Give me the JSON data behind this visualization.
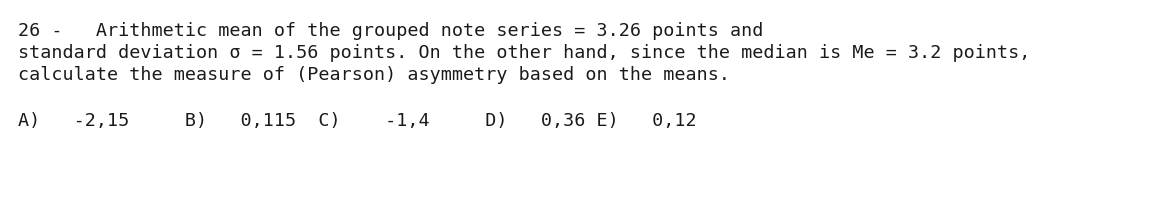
{
  "background_color": "#ffffff",
  "line1": "26 -   Arithmetic mean of the grouped note series = 3.26 points and",
  "line2": "standard deviation σ = 1.56 points. On the other hand, since the median is Me = 3.2 points,",
  "line3": "calculate the measure of (Pearson) asymmetry based on the means.",
  "answers": "A)   -2,15     B)   0,115  C)    -1,4     D)   0,36 E)   0,12",
  "font_family": "monospace",
  "font_size_main": 13.2,
  "font_size_answers": 13.2,
  "text_color": "#1a1a1a",
  "fig_width": 11.5,
  "fig_height": 1.99,
  "dpi": 100
}
